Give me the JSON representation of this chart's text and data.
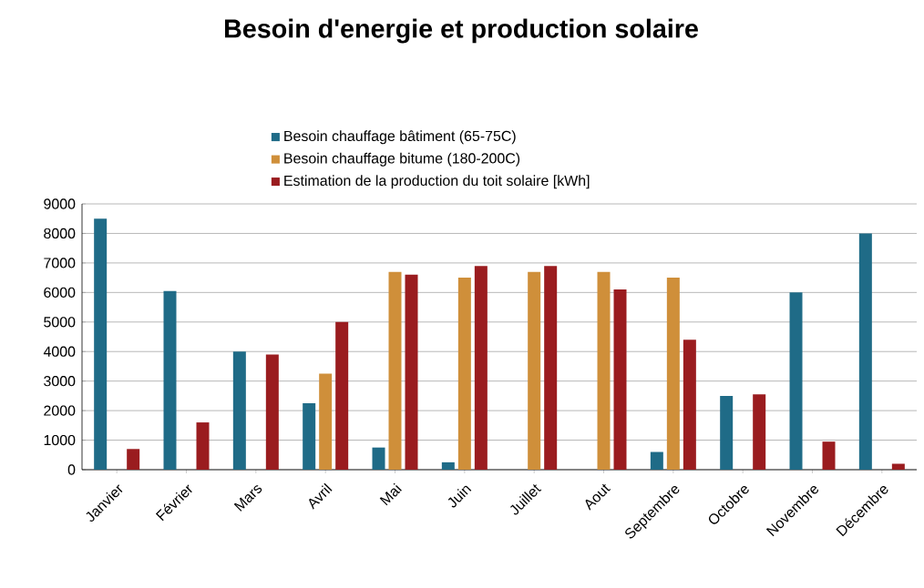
{
  "chart_data": {
    "type": "bar",
    "title": "Besoin d'energie et production solaire",
    "categories": [
      "Janvier",
      "Février",
      "Mars",
      "Avril",
      "Mai",
      "Juin",
      "Juillet",
      "Aout",
      "Septembre",
      "Octobre",
      "Novembre",
      "Décembre"
    ],
    "series": [
      {
        "name": "Besoin chauffage bâtiment (65-75C)",
        "color": "#1f6b87",
        "values": [
          8500,
          6050,
          4000,
          2250,
          750,
          250,
          null,
          null,
          600,
          2500,
          6000,
          8000
        ]
      },
      {
        "name": "Besoin chauffage bitume (180-200C)",
        "color": "#cf8f3a",
        "values": [
          null,
          null,
          null,
          3250,
          6700,
          6500,
          6700,
          6700,
          6500,
          null,
          null,
          null
        ]
      },
      {
        "name": "Estimation de la production du toit solaire [kWh]",
        "color": "#9a1c1f",
        "values": [
          700,
          1600,
          3900,
          5000,
          6600,
          6900,
          6900,
          6100,
          4400,
          2550,
          950,
          200
        ]
      }
    ],
    "ylim": [
      0,
      9000
    ],
    "yticks": [
      0,
      1000,
      2000,
      3000,
      4000,
      5000,
      6000,
      7000,
      8000,
      9000
    ],
    "grid": "y",
    "legend": "top"
  }
}
